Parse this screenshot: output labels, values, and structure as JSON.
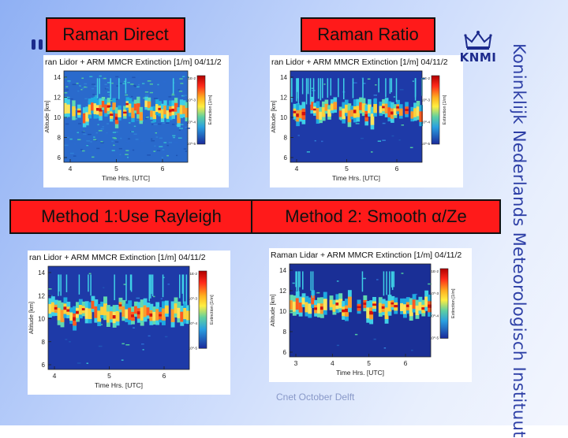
{
  "slide": {
    "labels": {
      "raman_direct": "Raman Direct",
      "raman_ratio": "Raman Ratio",
      "method1": "Method 1:Use Rayleigh",
      "method2": "Method 2: Smooth α/Ze"
    },
    "logo_text": "KNMI",
    "institute": "Koninklijk Nederlands Meteorologisch Instituut",
    "footer": "Cnet October Delft"
  },
  "plots": {
    "title_cut": "ran Lidor + ARM MMCR Extinction [1/m] 04/11/2",
    "title_full": "Raman Lidar + ARM MMCR Extinction [1/m] 04/11/2",
    "ylabel": "Altitude [km]",
    "xlabel": "Time Hrs. [UTC]",
    "colorbar_label": "Extinction [1/m]",
    "cb_ticks": [
      "1E-2",
      "10^-3",
      "10^-4",
      "10^-5"
    ],
    "yticks_a": [
      "14",
      "12",
      "10",
      "8",
      "6"
    ],
    "yticks_b": [
      "14",
      "12",
      "10",
      "8",
      "6"
    ],
    "xticks_a": [
      "4",
      "5",
      "6"
    ],
    "xticks_b": [
      "3",
      "4",
      "5",
      "6"
    ]
  },
  "colors": {
    "label_red": "#ff1a1a",
    "accent_blue": "#2d3fa6"
  }
}
